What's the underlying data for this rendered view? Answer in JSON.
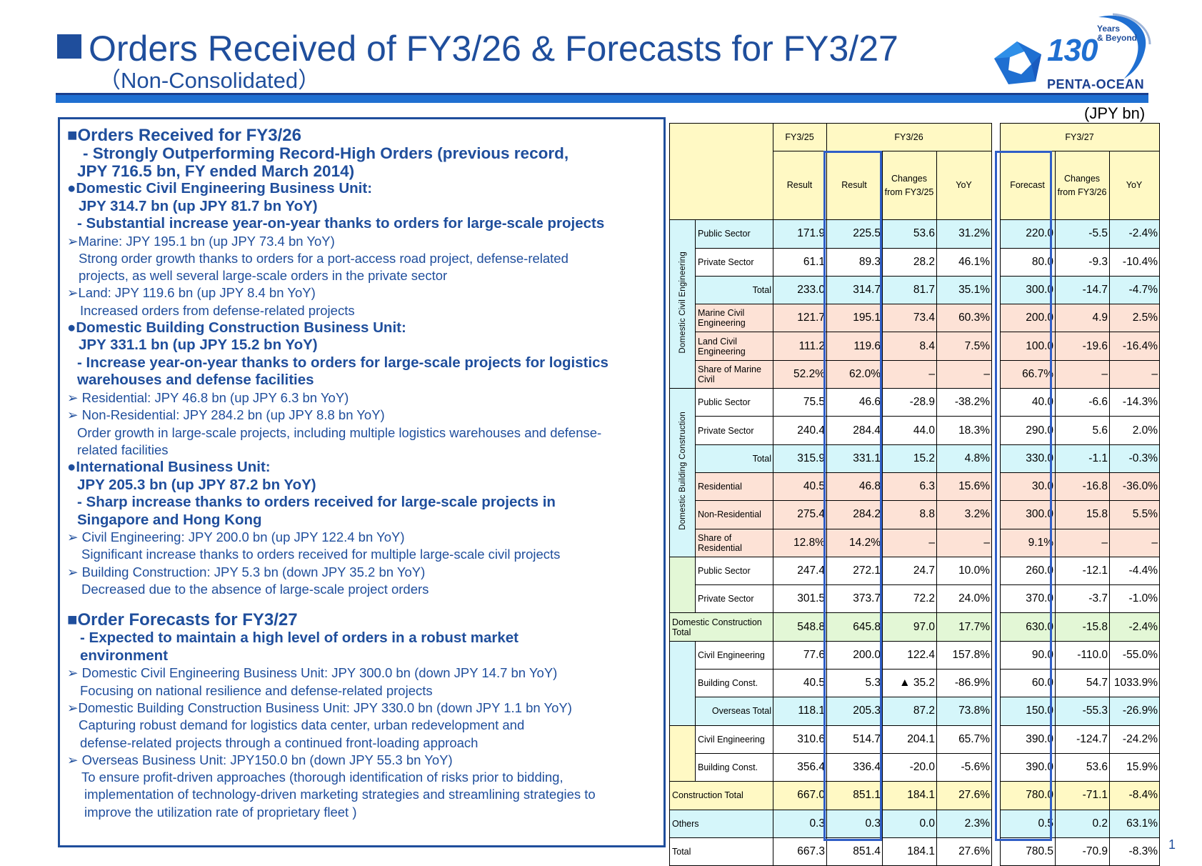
{
  "header": {
    "title": "Orders Received of FY3/26 & Forecasts for FY3/27",
    "subtitle": "（Non-Consolidated）",
    "unit": "(JPY bn)",
    "page_number": "1"
  },
  "logo": {
    "years": "Years",
    "beyond": "& Beyond",
    "number": "130",
    "name": "PENTA-OCEAN"
  },
  "panel": {
    "lines": [
      {
        "text": "■Orders Received for FY3/26",
        "style": "h1",
        "indent": 0
      },
      {
        "text": "- Strongly Outperforming Record-High Orders (previous record,",
        "style": "h2",
        "indent": 22
      },
      {
        "text": "JPY 716.5 bn, FY ended March 2014)",
        "style": "h2",
        "indent": 14
      },
      {
        "text": "●Domestic Civil Engineering Business Unit:",
        "style": "h3",
        "indent": 0
      },
      {
        "text": "JPY 314.7 bn (up JPY 81.7 bn YoY)",
        "style": "h3",
        "indent": 16
      },
      {
        "text": "- Substantial increase year-on-year thanks to orders for large-scale projects",
        "style": "h3",
        "indent": 14
      },
      {
        "text": "➢Marine: JPY 195.1 bn (up JPY 73.4 bn YoY)",
        "style": "ln",
        "indent": 0
      },
      {
        "text": "Strong order growth thanks to orders for a port-access road project, defense-related",
        "style": "ln",
        "indent": 16
      },
      {
        "text": "projects, as well several large-scale orders in the private sector",
        "style": "ln",
        "indent": 16
      },
      {
        "text": "➢Land: JPY 119.6 bn (up JPY 8.4 bn YoY)",
        "style": "ln",
        "indent": 0
      },
      {
        "text": "Increased orders from defense-related projects",
        "style": "ln",
        "indent": 18
      },
      {
        "text": "●Domestic Building Construction Business Unit:",
        "style": "h3",
        "indent": 0
      },
      {
        "text": "JPY 331.1 bn (up JPY 15.2 bn YoY)",
        "style": "h3",
        "indent": 16
      },
      {
        "text": "- Increase year-on-year thanks to orders for large-scale projects for logistics",
        "style": "h3",
        "indent": 14
      },
      {
        "text": "warehouses and defense facilities",
        "style": "h3",
        "indent": 14
      },
      {
        "text": "➢ Residential: JPY 46.8 bn (up JPY 6.3 bn YoY)",
        "style": "ln",
        "indent": 0
      },
      {
        "text": "➢ Non-Residential: JPY 284.2 bn (up JPY 8.8 bn YoY)",
        "style": "ln",
        "indent": 0
      },
      {
        "text": "Order growth in large-scale projects, including multiple logistics warehouses and defense-",
        "style": "ln",
        "indent": 14
      },
      {
        "text": "related facilities",
        "style": "ln",
        "indent": 14
      },
      {
        "text": "●International Business Unit:",
        "style": "h3",
        "indent": 0
      },
      {
        "text": "JPY 205.3 bn (up JPY 87.2 bn YoY)",
        "style": "h3",
        "indent": 14
      },
      {
        "text": "- Sharp increase thanks to orders received for large-scale projects in",
        "style": "h3",
        "indent": 14
      },
      {
        "text": "Singapore and Hong Kong",
        "style": "h3",
        "indent": 14
      },
      {
        "text": "➢ Civil Engineering: JPY 200.0 bn (up JPY 122.4 bn YoY)",
        "style": "ln",
        "indent": 0
      },
      {
        "text": "Significant increase thanks to orders received for multiple large-scale civil projects",
        "style": "ln",
        "indent": 20
      },
      {
        "text": "➢ Building Construction: JPY 5.3 bn (down JPY 35.2 bn YoY)",
        "style": "ln",
        "indent": 0
      },
      {
        "text": "Decreased due to the absence of large-scale project orders",
        "style": "ln",
        "indent": 20
      },
      {
        "text": "",
        "style": "gap",
        "indent": 0
      },
      {
        "text": "■Order Forecasts for FY3/27",
        "style": "h1",
        "indent": 0
      },
      {
        "text": "- Expected to maintain a high level of orders in a robust market",
        "style": "h3",
        "indent": 18
      },
      {
        "text": "environment",
        "style": "h3",
        "indent": 18
      },
      {
        "text": "➢ Domestic Civil Engineering Business Unit: JPY 300.0 bn (down JPY 14.7 bn YoY)",
        "style": "ln",
        "indent": 0
      },
      {
        "text": "Focusing on national resilience and defense-related projects",
        "style": "ln",
        "indent": 18
      },
      {
        "text": "➢Domestic Building Construction Business Unit: JPY 330.0 bn (down JPY 1.1 bn YoY)",
        "style": "ln",
        "indent": 0
      },
      {
        "text": "Capturing robust demand for logistics data center, urban redevelopment and",
        "style": "ln",
        "indent": 16
      },
      {
        "text": "defense-related projects through a continued front-loading approach",
        "style": "ln",
        "indent": 18
      },
      {
        "text": "➢ Overseas Business Unit: JPY150.0 bn (down JPY 55.3 bn YoY)",
        "style": "ln",
        "indent": 0
      },
      {
        "text": "To ensure profit-driven approaches (thorough identification of risks prior to bidding,",
        "style": "ln",
        "indent": 20
      },
      {
        "text": "implementation of technology-driven marketing strategies and streamlining strategies to",
        "style": "ln",
        "indent": 24
      },
      {
        "text": "improve the utilization rate of proprietary fleet )",
        "style": "ln",
        "indent": 24
      }
    ]
  },
  "table": {
    "headers": {
      "fy25": "FY3/25",
      "fy26": "FY3/26",
      "fy27": "FY3/27",
      "result": "Result",
      "changes_25": "Changes from FY3/25",
      "yoy": "YoY",
      "forecast": "Forecast",
      "changes_26": "Changes from FY3/26"
    },
    "groups": {
      "civil": "Domestic Civil Engineering",
      "building": "Domestic Building Construction"
    },
    "rows": [
      {
        "label": "Public Sector",
        "fy25": "171.9",
        "fy26": "225.5",
        "chg": "53.6",
        "yoy": "31.2%",
        "fc": "220.0",
        "fchg": "-5.5",
        "fyoy": "-2.4%"
      },
      {
        "label": "Private Sector",
        "fy25": "61.1",
        "fy26": "89.3",
        "chg": "28.2",
        "yoy": "46.1%",
        "fc": "80.0",
        "fchg": "-9.3",
        "fyoy": "-10.4%"
      },
      {
        "label": "Total",
        "fy25": "233.0",
        "fy26": "314.7",
        "chg": "81.7",
        "yoy": "35.1%",
        "fc": "300.0",
        "fchg": "-14.7",
        "fyoy": "-4.7%"
      },
      {
        "label": "Marine Civil Engineering",
        "fy25": "121.7",
        "fy26": "195.1",
        "chg": "73.4",
        "yoy": "60.3%",
        "fc": "200.0",
        "fchg": "4.9",
        "fyoy": "2.5%"
      },
      {
        "label": "Land Civil Engineering",
        "fy25": "111.2",
        "fy26": "119.6",
        "chg": "8.4",
        "yoy": "7.5%",
        "fc": "100.0",
        "fchg": "-19.6",
        "fyoy": "-16.4%"
      },
      {
        "label": "Share of Marine Civil",
        "fy25": "52.2%",
        "fy26": "62.0%",
        "chg": "–",
        "yoy": "–",
        "fc": "66.7%",
        "fchg": "–",
        "fyoy": "–"
      },
      {
        "label": "Public Sector",
        "fy25": "75.5",
        "fy26": "46.6",
        "chg": "-28.9",
        "yoy": "-38.2%",
        "fc": "40.0",
        "fchg": "-6.6",
        "fyoy": "-14.3%"
      },
      {
        "label": "Private Sector",
        "fy25": "240.4",
        "fy26": "284.4",
        "chg": "44.0",
        "yoy": "18.3%",
        "fc": "290.0",
        "fchg": "5.6",
        "fyoy": "2.0%"
      },
      {
        "label": "Total",
        "fy25": "315.9",
        "fy26": "331.1",
        "chg": "15.2",
        "yoy": "4.8%",
        "fc": "330.0",
        "fchg": "-1.1",
        "fyoy": "-0.3%"
      },
      {
        "label": "Residential",
        "fy25": "40.5",
        "fy26": "46.8",
        "chg": "6.3",
        "yoy": "15.6%",
        "fc": "30.0",
        "fchg": "-16.8",
        "fyoy": "-36.0%"
      },
      {
        "label": "Non-Residential",
        "fy25": "275.4",
        "fy26": "284.2",
        "chg": "8.8",
        "yoy": "3.2%",
        "fc": "300.0",
        "fchg": "15.8",
        "fyoy": "5.5%"
      },
      {
        "label": "Share of Residential",
        "fy25": "12.8%",
        "fy26": "14.2%",
        "chg": "–",
        "yoy": "–",
        "fc": "9.1%",
        "fchg": "–",
        "fyoy": "–"
      },
      {
        "label": "Public Sector",
        "fy25": "247.4",
        "fy26": "272.1",
        "chg": "24.7",
        "yoy": "10.0%",
        "fc": "260.0",
        "fchg": "-12.1",
        "fyoy": "-4.4%"
      },
      {
        "label": "Private Sector",
        "fy25": "301.5",
        "fy26": "373.7",
        "chg": "72.2",
        "yoy": "24.0%",
        "fc": "370.0",
        "fchg": "-3.7",
        "fyoy": "-1.0%"
      },
      {
        "label": "Domestic Construction Total",
        "fy25": "548.8",
        "fy26": "645.8",
        "chg": "97.0",
        "yoy": "17.7%",
        "fc": "630.0",
        "fchg": "-15.8",
        "fyoy": "-2.4%"
      },
      {
        "label": "Civil Engineering",
        "fy25": "77.6",
        "fy26": "200.0",
        "chg": "122.4",
        "yoy": "157.8%",
        "fc": "90.0",
        "fchg": "-110.0",
        "fyoy": "-55.0%"
      },
      {
        "label": "Building Const.",
        "fy25": "40.5",
        "fy26": "5.3",
        "chg": "▲ 35.2",
        "yoy": "-86.9%",
        "fc": "60.0",
        "fchg": "54.7",
        "fyoy": "1033.9%"
      },
      {
        "label": "Overseas Total",
        "fy25": "118.1",
        "fy26": "205.3",
        "chg": "87.2",
        "yoy": "73.8%",
        "fc": "150.0",
        "fchg": "-55.3",
        "fyoy": "-26.9%"
      },
      {
        "label": "Civil Engineering",
        "fy25": "310.6",
        "fy26": "514.7",
        "chg": "204.1",
        "yoy": "65.7%",
        "fc": "390.0",
        "fchg": "-124.7",
        "fyoy": "-24.2%"
      },
      {
        "label": "Building Const.",
        "fy25": "356.4",
        "fy26": "336.4",
        "chg": "-20.0",
        "yoy": "-5.6%",
        "fc": "390.0",
        "fchg": "53.6",
        "fyoy": "15.9%"
      },
      {
        "label": "Construction Total",
        "fy25": "667.0",
        "fy26": "851.1",
        "chg": "184.1",
        "yoy": "27.6%",
        "fc": "780.0",
        "fchg": "-71.1",
        "fyoy": "-8.4%"
      },
      {
        "label": "Others",
        "fy25": "0.3",
        "fy26": "0.3",
        "chg": "0.0",
        "yoy": "2.3%",
        "fc": "0.5",
        "fchg": "0.2",
        "fyoy": "63.1%"
      },
      {
        "label": "Total",
        "fy25": "667.3",
        "fy26": "851.4",
        "chg": "184.1",
        "yoy": "27.6%",
        "fc": "780.5",
        "fchg": "-70.9",
        "fyoy": "-8.3%"
      }
    ]
  },
  "colors": {
    "brand_blue": "#1f4e9c",
    "accent_blue": "#1f6fd1",
    "cell_yellow": "#fff9c4",
    "cell_pink": "#fde2d6",
    "cell_cyan": "#d5f6fa",
    "cell_green": "#e3f7d6"
  }
}
